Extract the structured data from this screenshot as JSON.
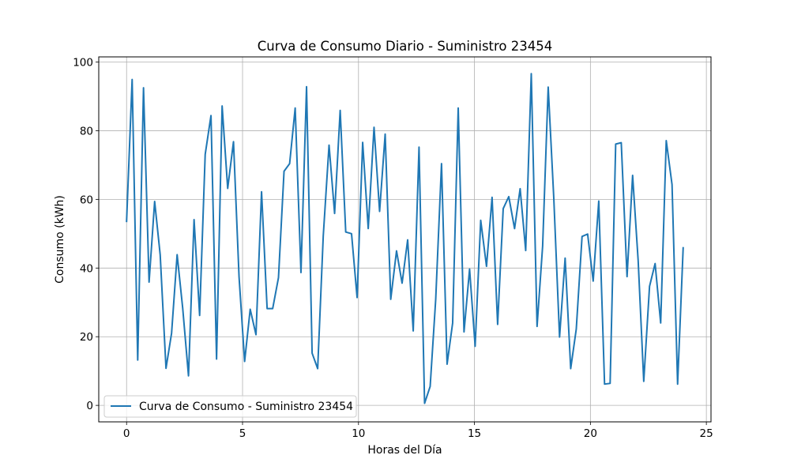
{
  "chart_data": {
    "type": "line",
    "title": "Curva de Consumo Diario - Suministro 23454",
    "xlabel": "Horas del Día",
    "ylabel": "Consumo (kWh)",
    "xlim": [
      -1.2,
      25.2
    ],
    "ylim": [
      -4.8,
      101.5
    ],
    "xticks": [
      0,
      5,
      10,
      15,
      20,
      25
    ],
    "yticks": [
      0,
      20,
      40,
      60,
      80,
      100
    ],
    "grid": true,
    "legend_position": "lower-left",
    "series": [
      {
        "name": "Curva de Consumo - Suministro 23454",
        "color": "#1f77b4",
        "x": [
          0,
          0.24,
          0.48,
          0.73,
          0.97,
          1.21,
          1.45,
          1.7,
          1.94,
          2.18,
          2.42,
          2.67,
          2.91,
          3.15,
          3.39,
          3.64,
          3.88,
          4.12,
          4.36,
          4.61,
          4.85,
          5.09,
          5.33,
          5.58,
          5.82,
          6.06,
          6.3,
          6.55,
          6.79,
          7.03,
          7.27,
          7.52,
          7.76,
          8,
          8.24,
          8.48,
          8.73,
          8.97,
          9.21,
          9.45,
          9.7,
          9.94,
          10.18,
          10.42,
          10.67,
          10.91,
          11.15,
          11.39,
          11.64,
          11.88,
          12.12,
          12.36,
          12.61,
          12.85,
          13.09,
          13.33,
          13.58,
          13.82,
          14.06,
          14.3,
          14.55,
          14.79,
          15.03,
          15.27,
          15.52,
          15.76,
          16,
          16.24,
          16.48,
          16.73,
          16.97,
          17.21,
          17.45,
          17.7,
          17.94,
          18.18,
          18.42,
          18.67,
          18.91,
          19.15,
          19.39,
          19.64,
          19.88,
          20.12,
          20.36,
          20.61,
          20.85,
          21.09,
          21.33,
          21.58,
          21.82,
          22.06,
          22.3,
          22.55,
          22.79,
          23.03,
          23.27,
          23.52,
          23.76,
          24
        ],
        "y": [
          53.6,
          94.9,
          13.2,
          92.5,
          35.9,
          59.4,
          43.8,
          10.8,
          21.0,
          43.9,
          28.3,
          8.6,
          54.1,
          26.2,
          73.1,
          84.4,
          13.5,
          87.2,
          63.2,
          76.8,
          37.4,
          12.8,
          28.0,
          20.6,
          62.2,
          28.2,
          28.2,
          37.2,
          68.2,
          70.4,
          86.6,
          38.7,
          92.8,
          15.2,
          10.7,
          49.3,
          75.8,
          55.9,
          85.9,
          50.5,
          50.0,
          31.4,
          76.6,
          51.5,
          81.0,
          56.5,
          79.0,
          30.9,
          45.0,
          35.6,
          48.2,
          21.7,
          75.2,
          0.6,
          5.5,
          30.9,
          70.4,
          12.0,
          24.0,
          86.6,
          21.4,
          39.7,
          17.2,
          53.9,
          40.5,
          60.6,
          23.6,
          57.3,
          60.8,
          51.5,
          63.1,
          45.1,
          96.6,
          23.0,
          46.4,
          92.7,
          60.5,
          19.9,
          42.9,
          10.7,
          22.2,
          49.2,
          49.9,
          36.2,
          59.5,
          6.2,
          6.4,
          76.1,
          76.5,
          37.5,
          67.0,
          42.1,
          7.0,
          34.7,
          41.3,
          24.0,
          77.1,
          64.3,
          6.2,
          45.9
        ]
      }
    ]
  }
}
